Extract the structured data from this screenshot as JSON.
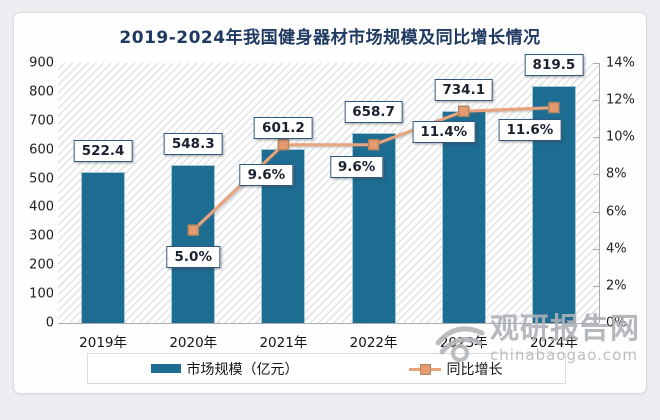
{
  "title": "2019-2024年我国健身器材市场规模及同比增长情况",
  "chart_data": {
    "type": "bar+line",
    "title": "2019-2024年我国健身器材市场规模及同比增长情况",
    "categories": [
      "2019年",
      "2020年",
      "2021年",
      "2022年",
      "2023年",
      "2024年"
    ],
    "series": [
      {
        "name": "市场规模（亿元）",
        "type": "bar",
        "axis": "left",
        "color": "#1d6c92",
        "values": [
          522.4,
          548.3,
          601.2,
          658.7,
          734.1,
          819.5
        ],
        "labels": [
          "522.4",
          "548.3",
          "601.2",
          "658.7",
          "734.1",
          "819.5"
        ]
      },
      {
        "name": "同比增长",
        "type": "line",
        "axis": "right",
        "color": "#e9a47e",
        "marker_color": "#e59a70",
        "values": [
          null,
          5.0,
          9.6,
          9.6,
          11.4,
          11.6
        ],
        "labels": [
          null,
          "5.0%",
          "9.6%",
          "9.6%",
          "11.4%",
          "11.6%"
        ]
      }
    ],
    "left_axis": {
      "min": 0,
      "max": 900,
      "step": 100,
      "ticks": [
        "0",
        "100",
        "200",
        "300",
        "400",
        "500",
        "600",
        "700",
        "800",
        "900"
      ]
    },
    "right_axis": {
      "min": 0,
      "max": 14,
      "step": 2,
      "ticks": [
        "0%",
        "2%",
        "4%",
        "6%",
        "8%",
        "10%",
        "12%",
        "14%"
      ]
    },
    "grid": false,
    "legend_position": "bottom",
    "plot_background": "diagonal-hatch"
  },
  "legend": {
    "items": [
      {
        "label": "市场规模（亿元）",
        "swatch": "bar",
        "color": "#1d6c92"
      },
      {
        "label": "同比增长",
        "swatch": "line-marker",
        "color": "#e9a47e"
      }
    ]
  },
  "watermark": {
    "brand": "观研报告网",
    "domain": "chinabaogao.com"
  }
}
